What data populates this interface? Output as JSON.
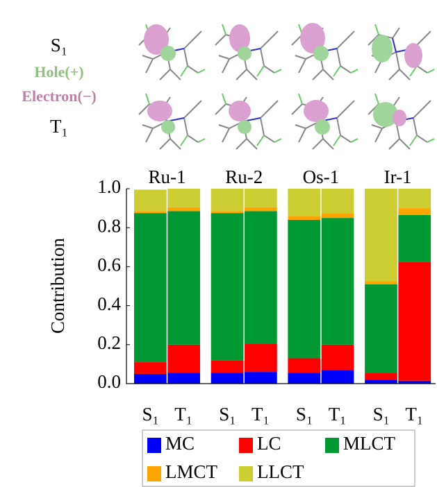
{
  "panel_labels": {
    "singlet": "S₁",
    "hole": "Hole(+)",
    "electron": "Electron(−)",
    "triplet": "T₁"
  },
  "chart_data": {
    "type": "stacked_bar",
    "groups": [
      "Ru-1",
      "Ru-2",
      "Os-1",
      "Ir-1"
    ],
    "categories": [
      "S₁",
      "T₁",
      "S₁",
      "T₁",
      "S₁",
      "T₁",
      "S₁",
      "T₁"
    ],
    "y_label": "Contribution",
    "ylim": [
      0,
      1
    ],
    "yticks": [
      {
        "value": 0,
        "label": "0.0"
      },
      0.2,
      0.4,
      0.6,
      0.8,
      {
        "value": 1,
        "label": "1.0"
      }
    ],
    "series": [
      {
        "name": "MC",
        "color": "#0000ff",
        "values": [
          0.05,
          0.055,
          0.055,
          0.06,
          0.055,
          0.07,
          0.02,
          0.015
        ]
      },
      {
        "name": "LC",
        "color": "#ff0000",
        "values": [
          0.06,
          0.145,
          0.065,
          0.145,
          0.075,
          0.13,
          0.035,
          0.61
        ]
      },
      {
        "name": "MLCT",
        "color": "#009933",
        "values": [
          0.765,
          0.685,
          0.755,
          0.68,
          0.71,
          0.65,
          0.455,
          0.24
        ]
      },
      {
        "name": "LMCT",
        "color": "#ffa500",
        "values": [
          0.01,
          0.02,
          0.01,
          0.02,
          0.02,
          0.025,
          0.015,
          0.035
        ]
      },
      {
        "name": "LLCT",
        "color": "#cccc33",
        "values": [
          0.11,
          0.095,
          0.115,
          0.095,
          0.14,
          0.125,
          0.475,
          0.1
        ]
      }
    ]
  }
}
